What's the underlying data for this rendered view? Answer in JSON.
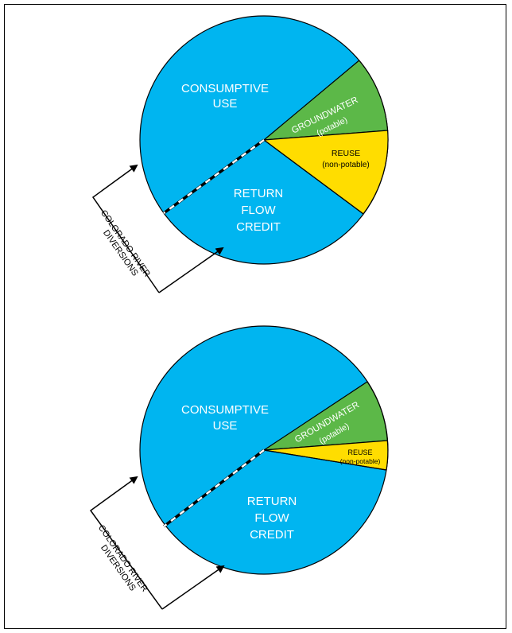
{
  "colors": {
    "blue": "#00b5f0",
    "green": "#5cb848",
    "yellow": "#ffdd00",
    "outline": "#000000",
    "dash": "#ffffff"
  },
  "diagram_top": {
    "consumptive_use_line1": "CONSUMPTIVE",
    "consumptive_use_line2": "USE",
    "groundwater_line1": "GROUNDWATER",
    "groundwater_line2": "(potable)",
    "reuse_line1": "REUSE",
    "reuse_line2": "(non-potable)",
    "return_line1": "RETURN",
    "return_line2": "FLOW",
    "return_line3": "CREDIT",
    "diversions_line1": "COLORADO RIVER",
    "diversions_line2": "DIVERSIONS"
  },
  "diagram_bottom": {
    "consumptive_use_line1": "CONSUMPTIVE",
    "consumptive_use_line2": "USE",
    "groundwater_line1": "GROUNDWATER",
    "groundwater_line2": "(potable)",
    "reuse_line1": "REUSE",
    "reuse_line2": "(non-potable)",
    "return_line1": "RETURN",
    "return_line2": "FLOW",
    "return_line3": "CREDIT",
    "diversions_line1": "COLORADO RIVER",
    "diversions_line2": "DIVERSIONS"
  }
}
